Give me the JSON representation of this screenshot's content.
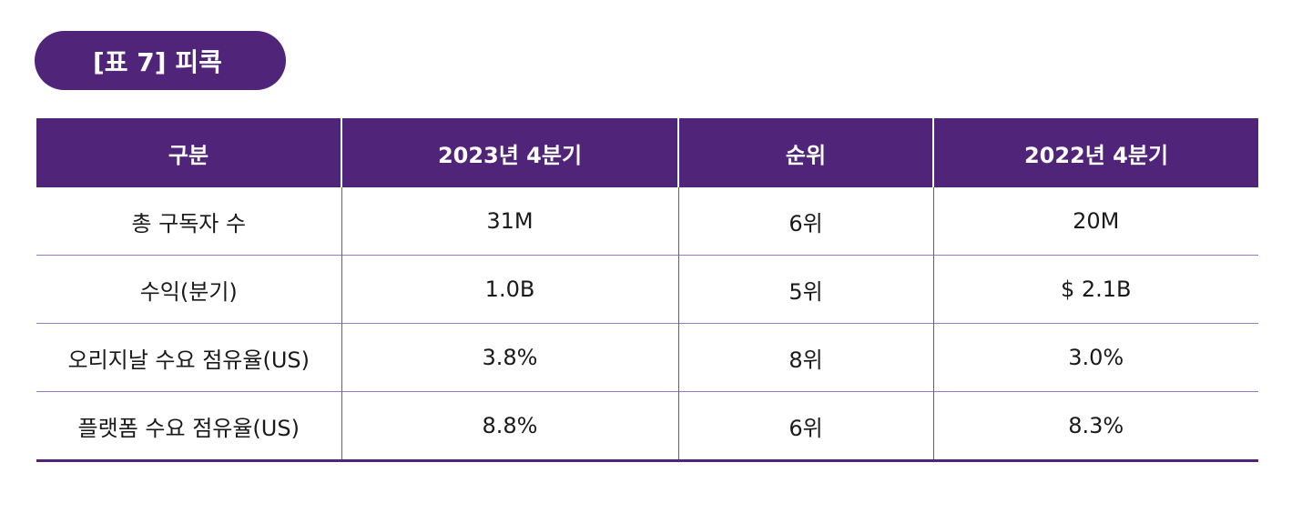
{
  "title": "[표 7] 피콕",
  "table": {
    "headers": [
      "구분",
      "2023년 4분기",
      "순위",
      "2022년 4분기"
    ],
    "rows": [
      [
        "총 구독자 수",
        "31M",
        "6위",
        "20M"
      ],
      [
        "수익(분기)",
        "1.0B",
        "5위",
        "$ 2.1B"
      ],
      [
        "오리지날 수요 점유율(US)",
        "3.8%",
        "8위",
        "3.0%"
      ],
      [
        "플랫폼 수요 점유율(US)",
        "8.8%",
        "6위",
        "8.3%"
      ]
    ]
  },
  "colors": {
    "accent": "#502479",
    "row_divider": "#9a79bf"
  }
}
